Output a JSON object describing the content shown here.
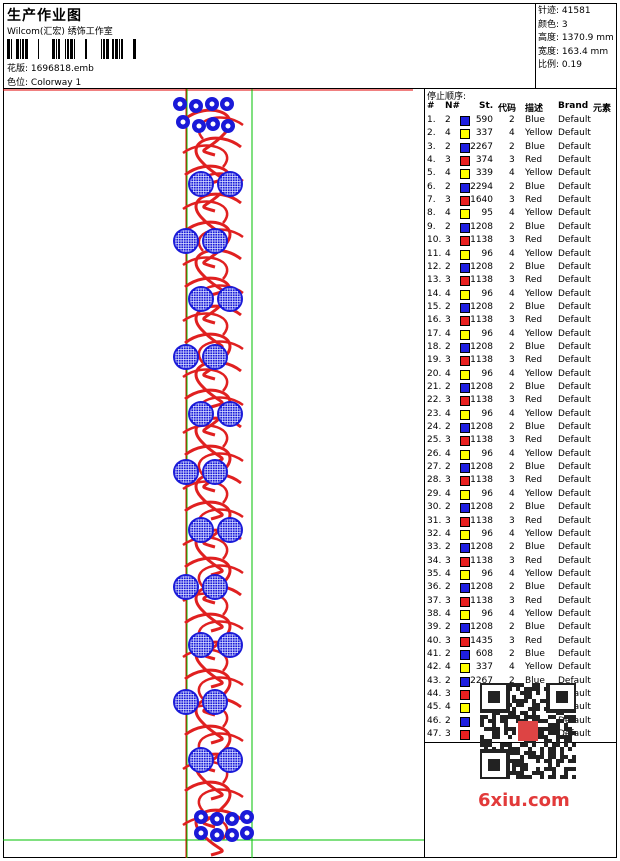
{
  "header": {
    "title": "生产作业图",
    "company": "Wilcom(汇宏) 绣饰工作室",
    "file_label": "花版:",
    "file_name": "1696818.emb",
    "colorway_label": "色位:",
    "colorway": "Colorway 1"
  },
  "stats": [
    {
      "label": "针迹:",
      "value": "41581"
    },
    {
      "label": "颜色:",
      "value": "3"
    },
    {
      "label": "高度:",
      "value": "1370.9 mm"
    },
    {
      "label": "宽度:",
      "value": "163.4 mm"
    },
    {
      "label": "比例:",
      "value": "0.19"
    }
  ],
  "table": {
    "caption": "停止顺序:",
    "headers": [
      "#",
      "N#",
      "St.",
      "代码",
      "描述",
      "Brand",
      "元素"
    ],
    "colors": {
      "Blue": "#1f1fe0",
      "Yellow": "#ffff00",
      "Red": "#e82020"
    },
    "rows": [
      [
        "1.",
        "2",
        "Blue",
        "590",
        "2",
        "Blue",
        "Default"
      ],
      [
        "2.",
        "4",
        "Yellow",
        "337",
        "4",
        "Yellow",
        "Default"
      ],
      [
        "3.",
        "2",
        "Blue",
        "2267",
        "2",
        "Blue",
        "Default"
      ],
      [
        "4.",
        "3",
        "Red",
        "374",
        "3",
        "Red",
        "Default"
      ],
      [
        "5.",
        "4",
        "Yellow",
        "339",
        "4",
        "Yellow",
        "Default"
      ],
      [
        "6.",
        "2",
        "Blue",
        "2294",
        "2",
        "Blue",
        "Default"
      ],
      [
        "7.",
        "3",
        "Red",
        "1640",
        "3",
        "Red",
        "Default"
      ],
      [
        "8.",
        "4",
        "Yellow",
        "95",
        "4",
        "Yellow",
        "Default"
      ],
      [
        "9.",
        "2",
        "Blue",
        "1208",
        "2",
        "Blue",
        "Default"
      ],
      [
        "10.",
        "3",
        "Red",
        "1138",
        "3",
        "Red",
        "Default"
      ],
      [
        "11.",
        "4",
        "Yellow",
        "96",
        "4",
        "Yellow",
        "Default"
      ],
      [
        "12.",
        "2",
        "Blue",
        "1208",
        "2",
        "Blue",
        "Default"
      ],
      [
        "13.",
        "3",
        "Red",
        "1138",
        "3",
        "Red",
        "Default"
      ],
      [
        "14.",
        "4",
        "Yellow",
        "96",
        "4",
        "Yellow",
        "Default"
      ],
      [
        "15.",
        "2",
        "Blue",
        "1208",
        "2",
        "Blue",
        "Default"
      ],
      [
        "16.",
        "3",
        "Red",
        "1138",
        "3",
        "Red",
        "Default"
      ],
      [
        "17.",
        "4",
        "Yellow",
        "96",
        "4",
        "Yellow",
        "Default"
      ],
      [
        "18.",
        "2",
        "Blue",
        "1208",
        "2",
        "Blue",
        "Default"
      ],
      [
        "19.",
        "3",
        "Red",
        "1138",
        "3",
        "Red",
        "Default"
      ],
      [
        "20.",
        "4",
        "Yellow",
        "96",
        "4",
        "Yellow",
        "Default"
      ],
      [
        "21.",
        "2",
        "Blue",
        "1208",
        "2",
        "Blue",
        "Default"
      ],
      [
        "22.",
        "3",
        "Red",
        "1138",
        "3",
        "Red",
        "Default"
      ],
      [
        "23.",
        "4",
        "Yellow",
        "96",
        "4",
        "Yellow",
        "Default"
      ],
      [
        "24.",
        "2",
        "Blue",
        "1208",
        "2",
        "Blue",
        "Default"
      ],
      [
        "25.",
        "3",
        "Red",
        "1138",
        "3",
        "Red",
        "Default"
      ],
      [
        "26.",
        "4",
        "Yellow",
        "96",
        "4",
        "Yellow",
        "Default"
      ],
      [
        "27.",
        "2",
        "Blue",
        "1208",
        "2",
        "Blue",
        "Default"
      ],
      [
        "28.",
        "3",
        "Red",
        "1138",
        "3",
        "Red",
        "Default"
      ],
      [
        "29.",
        "4",
        "Yellow",
        "96",
        "4",
        "Yellow",
        "Default"
      ],
      [
        "30.",
        "2",
        "Blue",
        "1208",
        "2",
        "Blue",
        "Default"
      ],
      [
        "31.",
        "3",
        "Red",
        "1138",
        "3",
        "Red",
        "Default"
      ],
      [
        "32.",
        "4",
        "Yellow",
        "96",
        "4",
        "Yellow",
        "Default"
      ],
      [
        "33.",
        "2",
        "Blue",
        "1208",
        "2",
        "Blue",
        "Default"
      ],
      [
        "34.",
        "3",
        "Red",
        "1138",
        "3",
        "Red",
        "Default"
      ],
      [
        "35.",
        "4",
        "Yellow",
        "96",
        "4",
        "Yellow",
        "Default"
      ],
      [
        "36.",
        "2",
        "Blue",
        "1208",
        "2",
        "Blue",
        "Default"
      ],
      [
        "37.",
        "3",
        "Red",
        "1138",
        "3",
        "Red",
        "Default"
      ],
      [
        "38.",
        "4",
        "Yellow",
        "96",
        "4",
        "Yellow",
        "Default"
      ],
      [
        "39.",
        "2",
        "Blue",
        "1208",
        "2",
        "Blue",
        "Default"
      ],
      [
        "40.",
        "3",
        "Red",
        "1435",
        "3",
        "Red",
        "Default"
      ],
      [
        "41.",
        "2",
        "Blue",
        "608",
        "2",
        "Blue",
        "Default"
      ],
      [
        "42.",
        "4",
        "Yellow",
        "337",
        "4",
        "Yellow",
        "Default"
      ],
      [
        "43.",
        "2",
        "Blue",
        "2267",
        "2",
        "Blue",
        "Default"
      ],
      [
        "44.",
        "3",
        "Red",
        "",
        "",
        "",
        "Default"
      ],
      [
        "45.",
        "4",
        "Yellow",
        "",
        "",
        "",
        "Default"
      ],
      [
        "46.",
        "2",
        "Blue",
        "",
        "",
        "",
        "Default"
      ],
      [
        "47.",
        "3",
        "Red",
        "",
        "",
        "",
        "Default"
      ]
    ]
  },
  "watermark": {
    "text": "6xiu.com"
  },
  "design_colors": {
    "thread_red": "#e02020",
    "thread_blue": "#1a1ad8",
    "guide_green": "#00c000",
    "guide_red": "#e00000"
  }
}
